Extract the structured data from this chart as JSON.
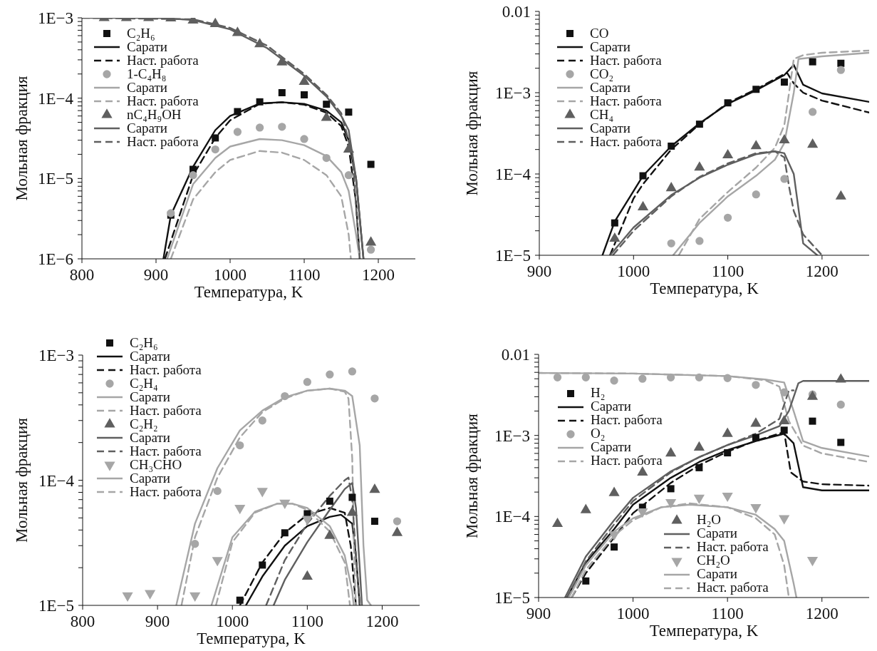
{
  "chart_data": [
    {
      "type": "line",
      "xlabel": "Температура, K",
      "ylabel": "Мольная фракция",
      "log": "y",
      "legend": "top left",
      "xlim": [
        800,
        1250
      ],
      "xticks": [
        800,
        900,
        1000,
        1100,
        1200
      ],
      "ylim": [
        1e-06,
        0.001
      ],
      "yticks": [
        {
          "value": 1e-06,
          "label": "1E−6"
        },
        {
          "value": 2e-06,
          "label": null
        },
        {
          "value": 3e-06,
          "label": null
        },
        {
          "value": 4e-06,
          "label": null
        },
        {
          "value": 5e-06,
          "label": null
        },
        {
          "value": 6e-06,
          "label": null
        },
        {
          "value": 7e-06,
          "label": null
        },
        {
          "value": 8e-06,
          "label": null
        },
        {
          "value": 9e-06,
          "label": null
        },
        {
          "value": 1e-05,
          "label": "1E−5"
        },
        {
          "value": 2e-05,
          "label": null
        },
        {
          "value": 3e-05,
          "label": null
        },
        {
          "value": 4e-05,
          "label": null
        },
        {
          "value": 5e-05,
          "label": null
        },
        {
          "value": 6e-05,
          "label": null
        },
        {
          "value": 7e-05,
          "label": null
        },
        {
          "value": 8e-05,
          "label": null
        },
        {
          "value": 9e-05,
          "label": null
        },
        {
          "value": 0.0001,
          "label": "1E−4"
        },
        {
          "value": 0.0002,
          "label": null
        },
        {
          "value": 0.0003,
          "label": null
        },
        {
          "value": 0.0004,
          "label": null
        },
        {
          "value": 0.0005,
          "label": null
        },
        {
          "value": 0.0006,
          "label": null
        },
        {
          "value": 0.0007,
          "label": null
        },
        {
          "value": 0.0008,
          "label": null
        },
        {
          "value": 0.0009,
          "label": null
        },
        {
          "value": 0.001,
          "label": "1E−3"
        }
      ],
      "series": [
        {
          "type": "scatter",
          "name": "C₂H₆",
          "color": "#111111",
          "marker": "square",
          "x": [
            920,
            950,
            980,
            1010,
            1040,
            1070,
            1100,
            1130,
            1160,
            1190
          ],
          "values": [
            3.5e-06,
            1.3e-05,
            3.2e-05,
            6.8e-05,
            9e-05,
            0.000117,
            0.00011,
            8.4e-05,
            6.7e-05,
            1.5e-05
          ]
        },
        {
          "type": "line",
          "name": "Сарати",
          "color": "#111111",
          "line_style": "solid",
          "x": [
            910,
            920,
            950,
            980,
            1000,
            1040,
            1070,
            1100,
            1130,
            1150,
            1160,
            1170,
            1180
          ],
          "values": [
            1e-06,
            3.5e-06,
            1.4e-05,
            4e-05,
            6e-05,
            8.6e-05,
            8.9e-05,
            8.5e-05,
            7e-05,
            5e-05,
            3e-05,
            1e-05,
            1e-06
          ]
        },
        {
          "type": "line",
          "name": "Наст. работа",
          "color": "#111111",
          "line_style": "dashed",
          "x": [
            912,
            950,
            980,
            1000,
            1040,
            1070,
            1100,
            1130,
            1150,
            1160,
            1170,
            1175
          ],
          "values": [
            1e-06,
            1.1e-05,
            3.2e-05,
            5.3e-05,
            8.5e-05,
            8.9e-05,
            8.3e-05,
            6.6e-05,
            4.5e-05,
            2.5e-05,
            5e-06,
            1e-06
          ]
        },
        {
          "type": "scatter",
          "name": "1-C₄H₈",
          "color": "#a6a6a6",
          "marker": "circle",
          "x": [
            920,
            950,
            980,
            1010,
            1040,
            1070,
            1100,
            1130,
            1160,
            1190
          ],
          "values": [
            3.7e-06,
            1.1e-05,
            2.3e-05,
            3.8e-05,
            4.3e-05,
            4.4e-05,
            3.1e-05,
            1.8e-05,
            1.1e-05,
            1.3e-06
          ]
        },
        {
          "type": "line",
          "name": "Сарати",
          "color": "#a6a6a6",
          "line_style": "solid",
          "x": [
            915,
            950,
            980,
            1000,
            1040,
            1070,
            1100,
            1130,
            1150,
            1160,
            1170,
            1175
          ],
          "values": [
            1e-06,
            8.5e-06,
            1.8e-05,
            2.5e-05,
            3.1e-05,
            3e-05,
            2.6e-05,
            1.9e-05,
            1.2e-05,
            7e-06,
            2e-06,
            1e-06
          ]
        },
        {
          "type": "line",
          "name": "Наст. работа",
          "color": "#a6a6a6",
          "line_style": "dashed",
          "x": [
            920,
            950,
            980,
            1000,
            1040,
            1070,
            1100,
            1130,
            1150,
            1160,
            1163
          ],
          "values": [
            1e-06,
            5.5e-06,
            1.2e-05,
            1.7e-05,
            2.2e-05,
            2.1e-05,
            1.7e-05,
            1.1e-05,
            6e-06,
            2e-06,
            1e-06
          ]
        },
        {
          "type": "scatter",
          "name": "nC₄H₉OH",
          "color": "#5f5f5f",
          "marker": "triangle",
          "x": [
            830,
            860,
            890,
            920,
            950,
            980,
            1010,
            1040,
            1070,
            1100,
            1130,
            1160,
            1190
          ],
          "values": [
            0.001,
            0.001,
            0.001,
            0.00099,
            0.00093,
            0.00084,
            0.00065,
            0.00047,
            0.00028,
            0.00016,
            5.7e-05,
            2.3e-05,
            1.6e-06
          ]
        },
        {
          "type": "line",
          "name": "Сарати",
          "color": "#5f5f5f",
          "line_style": "solid",
          "x": [
            800,
            900,
            950,
            1000,
            1050,
            1100,
            1130,
            1150,
            1160,
            1170,
            1180
          ],
          "values": [
            0.001,
            0.001,
            0.00094,
            0.00072,
            0.00042,
            0.00019,
            0.000105,
            6e-05,
            4e-05,
            1e-05,
            1e-06
          ]
        },
        {
          "type": "line",
          "name": "Наст. работа",
          "color": "#5f5f5f",
          "line_style": "dashed",
          "x": [
            800,
            950,
            1000,
            1050,
            1100,
            1130,
            1150,
            1165,
            1175
          ],
          "values": [
            0.001,
            0.00096,
            0.00075,
            0.00045,
            0.0002,
            0.00011,
            6.5e-05,
            2e-05,
            1e-06
          ]
        }
      ]
    },
    {
      "type": "line",
      "xlabel": "Температура, K",
      "ylabel": "Мольная фракция",
      "log": "y",
      "legend": "top left",
      "xlim": [
        900,
        1250
      ],
      "xticks": [
        900,
        1000,
        1100,
        1200
      ],
      "ylim": [
        1e-05,
        0.01
      ],
      "yticks": [
        {
          "value": 1e-05,
          "label": "1E−5"
        },
        {
          "value": 2e-05,
          "label": null
        },
        {
          "value": 3e-05,
          "label": null
        },
        {
          "value": 4e-05,
          "label": null
        },
        {
          "value": 5e-05,
          "label": null
        },
        {
          "value": 6e-05,
          "label": null
        },
        {
          "value": 7e-05,
          "label": null
        },
        {
          "value": 8e-05,
          "label": null
        },
        {
          "value": 9e-05,
          "label": null
        },
        {
          "value": 0.0001,
          "label": "1E−4"
        },
        {
          "value": 0.0002,
          "label": null
        },
        {
          "value": 0.0003,
          "label": null
        },
        {
          "value": 0.0004,
          "label": null
        },
        {
          "value": 0.0005,
          "label": null
        },
        {
          "value": 0.0006,
          "label": null
        },
        {
          "value": 0.0007,
          "label": null
        },
        {
          "value": 0.0008,
          "label": null
        },
        {
          "value": 0.0009,
          "label": null
        },
        {
          "value": 0.001,
          "label": "1E−3"
        },
        {
          "value": 0.002,
          "label": null
        },
        {
          "value": 0.003,
          "label": null
        },
        {
          "value": 0.004,
          "label": null
        },
        {
          "value": 0.005,
          "label": null
        },
        {
          "value": 0.006,
          "label": null
        },
        {
          "value": 0.007,
          "label": null
        },
        {
          "value": 0.008,
          "label": null
        },
        {
          "value": 0.009,
          "label": null
        },
        {
          "value": 0.01,
          "label": "0.01"
        }
      ],
      "series": [
        {
          "type": "scatter",
          "name": "CO",
          "color": "#111111",
          "marker": "square",
          "x": [
            980,
            1010,
            1040,
            1070,
            1100,
            1130,
            1160,
            1190,
            1220
          ],
          "values": [
            2.5e-05,
            9.5e-05,
            0.00022,
            0.00041,
            0.00075,
            0.0011,
            0.00135,
            0.0024,
            0.0023
          ]
        },
        {
          "type": "line",
          "name": "Сарати",
          "color": "#111111",
          "line_style": "solid",
          "x": [
            967,
            980,
            1010,
            1040,
            1070,
            1100,
            1130,
            1160,
            1170,
            1180,
            1200,
            1250
          ],
          "values": [
            1e-05,
            2.6e-05,
            9.5e-05,
            0.00022,
            0.00042,
            0.00073,
            0.00107,
            0.00165,
            0.0022,
            0.00125,
            0.00098,
            0.00077
          ]
        },
        {
          "type": "line",
          "name": "Наст. работа",
          "color": "#111111",
          "line_style": "dashed",
          "x": [
            975,
            1000,
            1010,
            1040,
            1070,
            1100,
            1130,
            1160,
            1163,
            1170,
            1180,
            1200,
            1250
          ],
          "values": [
            1e-05,
            5e-05,
            7.5e-05,
            0.0002,
            0.00041,
            0.00075,
            0.0011,
            0.0017,
            0.00175,
            0.0013,
            0.001,
            0.0008,
            0.00057
          ]
        },
        {
          "type": "scatter",
          "name": "CO₂",
          "color": "#a6a6a6",
          "marker": "circle",
          "x": [
            1040,
            1070,
            1100,
            1130,
            1160,
            1190,
            1220
          ],
          "values": [
            1.4e-05,
            1.5e-05,
            2.9e-05,
            5.6e-05,
            8.7e-05,
            0.00058,
            0.0019
          ]
        },
        {
          "type": "line",
          "name": "Сарати",
          "color": "#a6a6a6",
          "line_style": "solid",
          "x": [
            1042,
            1070,
            1100,
            1130,
            1150,
            1160,
            1170,
            1175,
            1200,
            1250
          ],
          "values": [
            1e-05,
            2.5e-05,
            5.3e-05,
            9.5e-05,
            0.00015,
            0.00024,
            0.001,
            0.0026,
            0.0028,
            0.0031
          ]
        },
        {
          "type": "line",
          "name": "Наст. работа",
          "color": "#a6a6a6",
          "line_style": "dashed",
          "x": [
            1048,
            1070,
            1100,
            1130,
            1150,
            1160,
            1165,
            1170,
            1180,
            1200,
            1250
          ],
          "values": [
            1e-05,
            2.8e-05,
            6e-05,
            0.00012,
            0.00021,
            0.0004,
            0.001,
            0.0026,
            0.0029,
            0.0031,
            0.0033
          ]
        },
        {
          "type": "scatter",
          "name": "CH₄",
          "color": "#5f5f5f",
          "marker": "triangle",
          "x": [
            980,
            1010,
            1040,
            1070,
            1100,
            1130,
            1160,
            1190,
            1220
          ],
          "values": [
            1.6e-05,
            3.9e-05,
            6.7e-05,
            0.00012,
            0.00017,
            0.00022,
            0.00026,
            0.00023,
            5.3e-05
          ]
        },
        {
          "type": "line",
          "name": "Сарати",
          "color": "#5f5f5f",
          "line_style": "solid",
          "x": [
            975,
            1000,
            1040,
            1070,
            1100,
            1130,
            1150,
            1160,
            1170,
            1180,
            1195
          ],
          "values": [
            1e-05,
            2.2e-05,
            5.5e-05,
            9e-05,
            0.00013,
            0.000175,
            0.00019,
            0.00018,
            0.0001,
            1.4e-05,
            1e-05
          ]
        },
        {
          "type": "line",
          "name": "Наст. работа",
          "color": "#5f5f5f",
          "line_style": "dashed",
          "x": [
            978,
            1000,
            1040,
            1070,
            1100,
            1130,
            1150,
            1160,
            1165,
            1170,
            1180,
            1200
          ],
          "values": [
            1e-05,
            2e-05,
            5.3e-05,
            9.2e-05,
            0.000135,
            0.00018,
            0.00019,
            0.00016,
            7e-05,
            3.5e-05,
            1.8e-05,
            1e-05
          ]
        }
      ]
    },
    {
      "type": "line",
      "xlabel": "Температура, K",
      "ylabel": "Мольная фракция",
      "log": "y",
      "legend": "top left",
      "xlim": [
        800,
        1250
      ],
      "xticks": [
        800,
        900,
        1000,
        1100,
        1200
      ],
      "ylim": [
        1e-05,
        0.001
      ],
      "yticks": [
        {
          "value": 1e-05,
          "label": "1E−5"
        },
        {
          "value": 2e-05,
          "label": null
        },
        {
          "value": 3e-05,
          "label": null
        },
        {
          "value": 4e-05,
          "label": null
        },
        {
          "value": 5e-05,
          "label": null
        },
        {
          "value": 6e-05,
          "label": null
        },
        {
          "value": 7e-05,
          "label": null
        },
        {
          "value": 8e-05,
          "label": null
        },
        {
          "value": 9e-05,
          "label": null
        },
        {
          "value": 0.0001,
          "label": "1E−4"
        },
        {
          "value": 0.0002,
          "label": null
        },
        {
          "value": 0.0003,
          "label": null
        },
        {
          "value": 0.0004,
          "label": null
        },
        {
          "value": 0.0005,
          "label": null
        },
        {
          "value": 0.0006,
          "label": null
        },
        {
          "value": 0.0007,
          "label": null
        },
        {
          "value": 0.0008,
          "label": null
        },
        {
          "value": 0.0009,
          "label": null
        },
        {
          "value": 0.001,
          "label": "1E−3"
        }
      ],
      "series": [
        {
          "type": "scatter",
          "name": "C₂H₆",
          "color": "#111111",
          "marker": "square",
          "x": [
            1010,
            1040,
            1070,
            1100,
            1130,
            1160,
            1190
          ],
          "values": [
            1.1e-05,
            2.1e-05,
            3.8e-05,
            5.4e-05,
            6.8e-05,
            7.3e-05,
            4.7e-05
          ]
        },
        {
          "type": "line",
          "name": "Сарати",
          "color": "#111111",
          "line_style": "solid",
          "x": [
            1018,
            1040,
            1070,
            1100,
            1130,
            1145,
            1160,
            1165,
            1170
          ],
          "values": [
            1e-05,
            1.7e-05,
            3e-05,
            4.3e-05,
            5.1e-05,
            5.3e-05,
            4.5e-05,
            2.5e-05,
            1e-05
          ]
        },
        {
          "type": "line",
          "name": "Наст. работа",
          "color": "#111111",
          "line_style": "dashed",
          "x": [
            1010,
            1040,
            1070,
            1100,
            1130,
            1150,
            1158,
            1165
          ],
          "values": [
            1e-05,
            2.2e-05,
            3.8e-05,
            5.3e-05,
            6e-05,
            5.5e-05,
            3e-05,
            1e-05
          ]
        },
        {
          "type": "scatter",
          "name": "C₂H₄",
          "color": "#a6a6a6",
          "marker": "circle",
          "x": [
            950,
            980,
            1010,
            1040,
            1070,
            1100,
            1130,
            1160,
            1190,
            1220
          ],
          "values": [
            3.1e-05,
            8.2e-05,
            0.00019,
            0.0003,
            0.00047,
            0.00061,
            0.0007,
            0.00074,
            0.00045,
            4.7e-05
          ]
        },
        {
          "type": "line",
          "name": "Сарати",
          "color": "#a6a6a6",
          "line_style": "solid",
          "x": [
            925,
            950,
            980,
            1010,
            1040,
            1070,
            1100,
            1130,
            1150,
            1160,
            1170,
            1175,
            1180,
            1185
          ],
          "values": [
            1e-05,
            4.5e-05,
            0.000125,
            0.00025,
            0.00036,
            0.00046,
            0.00052,
            0.00054,
            0.00052,
            0.00047,
            0.00019,
            3e-05,
            1.1e-05,
            1e-05
          ]
        },
        {
          "type": "line",
          "name": "Наст. работа",
          "color": "#a6a6a6",
          "line_style": "dashed",
          "x": [
            932,
            950,
            980,
            1010,
            1040,
            1070,
            1100,
            1130,
            1150,
            1155,
            1160,
            1163,
            1165
          ],
          "values": [
            1e-05,
            3.5e-05,
            0.000105,
            0.00022,
            0.00035,
            0.00045,
            0.00052,
            0.00054,
            0.00051,
            0.00045,
            0.00015,
            2e-05,
            1e-05
          ]
        },
        {
          "type": "scatter",
          "name": "C₂H₂",
          "color": "#5f5f5f",
          "marker": "triangle",
          "x": [
            1100,
            1130,
            1160,
            1190,
            1220
          ],
          "values": [
            1.7e-05,
            3.6e-05,
            5.5e-05,
            8.4e-05,
            3.8e-05
          ]
        },
        {
          "type": "line",
          "name": "Сарати",
          "color": "#5f5f5f",
          "line_style": "solid",
          "x": [
            1055,
            1070,
            1100,
            1130,
            1150,
            1160,
            1165,
            1170,
            1173
          ],
          "values": [
            1e-05,
            1.6e-05,
            3.2e-05,
            5.8e-05,
            8.5e-05,
            9.5e-05,
            6e-05,
            2e-05,
            1e-05
          ]
        },
        {
          "type": "line",
          "name": "Наст. работа",
          "color": "#5f5f5f",
          "line_style": "dashed",
          "x": [
            1045,
            1070,
            1100,
            1130,
            1150,
            1155,
            1160,
            1165,
            1170
          ],
          "values": [
            1e-05,
            2.3e-05,
            4.5e-05,
            7.5e-05,
            0.0001,
            0.000105,
            7e-05,
            2.5e-05,
            1e-05
          ]
        },
        {
          "type": "scatter",
          "name": "CH₃CHO",
          "color": "#a6a6a6",
          "marker": "triangle-down",
          "x": [
            860,
            890,
            950,
            980,
            1010,
            1040,
            1070,
            1100
          ],
          "values": [
            1.2e-05,
            1.25e-05,
            1.2e-05,
            2.3e-05,
            6e-05,
            8.2e-05,
            6.6e-05,
            4.9e-05
          ]
        },
        {
          "type": "line",
          "name": "Сарати",
          "color": "#a6a6a6",
          "line_style": "solid",
          "x": [
            972,
            1000,
            1030,
            1060,
            1080,
            1100,
            1130,
            1150,
            1160,
            1162
          ],
          "values": [
            1e-05,
            3.5e-05,
            5.6e-05,
            6.5e-05,
            6.5e-05,
            6e-05,
            4.3e-05,
            2.5e-05,
            1.3e-05,
            1e-05
          ]
        },
        {
          "type": "line",
          "name": "Наст. работа",
          "color": "#a6a6a6",
          "line_style": "dashed",
          "x": [
            978,
            1000,
            1030,
            1060,
            1080,
            1100,
            1130,
            1150,
            1157
          ],
          "values": [
            1e-05,
            3.2e-05,
            5.5e-05,
            6.5e-05,
            6.5e-05,
            5.8e-05,
            3.9e-05,
            2.2e-05,
            1e-05
          ]
        }
      ]
    },
    {
      "type": "line",
      "xlabel": "Температура, K",
      "ylabel": "Мольная фракция",
      "log": "y",
      "legend": "left",
      "xlim": [
        900,
        1250
      ],
      "xticks": [
        900,
        1000,
        1100,
        1200
      ],
      "ylim": [
        1e-05,
        0.01
      ],
      "yticks": [
        {
          "value": 1e-05,
          "label": "1E−5"
        },
        {
          "value": 2e-05,
          "label": null
        },
        {
          "value": 3e-05,
          "label": null
        },
        {
          "value": 4e-05,
          "label": null
        },
        {
          "value": 5e-05,
          "label": null
        },
        {
          "value": 6e-05,
          "label": null
        },
        {
          "value": 7e-05,
          "label": null
        },
        {
          "value": 8e-05,
          "label": null
        },
        {
          "value": 9e-05,
          "label": null
        },
        {
          "value": 0.0001,
          "label": "1E−4"
        },
        {
          "value": 0.0002,
          "label": null
        },
        {
          "value": 0.0003,
          "label": null
        },
        {
          "value": 0.0004,
          "label": null
        },
        {
          "value": 0.0005,
          "label": null
        },
        {
          "value": 0.0006,
          "label": null
        },
        {
          "value": 0.0007,
          "label": null
        },
        {
          "value": 0.0008,
          "label": null
        },
        {
          "value": 0.0009,
          "label": null
        },
        {
          "value": 0.001,
          "label": "1E−3"
        },
        {
          "value": 0.002,
          "label": null
        },
        {
          "value": 0.003,
          "label": null
        },
        {
          "value": 0.004,
          "label": null
        },
        {
          "value": 0.005,
          "label": null
        },
        {
          "value": 0.006,
          "label": null
        },
        {
          "value": 0.007,
          "label": null
        },
        {
          "value": 0.008,
          "label": null
        },
        {
          "value": 0.009,
          "label": null
        },
        {
          "value": 0.01,
          "label": "0.01"
        }
      ],
      "series": [
        {
          "type": "scatter",
          "name": "H₂",
          "color": "#111111",
          "marker": "square",
          "x": [
            950,
            980,
            1010,
            1040,
            1070,
            1100,
            1130,
            1160,
            1190,
            1220
          ],
          "values": [
            1.6e-05,
            4.2e-05,
            0.00013,
            0.00022,
            0.0004,
            0.00061,
            0.00094,
            0.00116,
            0.0015,
            0.00082
          ]
        },
        {
          "type": "line",
          "name": "Сарати",
          "color": "#111111",
          "line_style": "solid",
          "x": [
            930,
            950,
            980,
            1000,
            1040,
            1070,
            1100,
            1130,
            1160,
            1170,
            1180,
            1200,
            1250
          ],
          "values": [
            1e-05,
            2.7e-05,
            7e-05,
            0.00014,
            0.0003,
            0.00047,
            0.00066,
            0.00085,
            0.00105,
            0.0008,
            0.00023,
            0.00021,
            0.00021
          ]
        },
        {
          "type": "line",
          "name": "Наст. работа",
          "color": "#111111",
          "line_style": "dashed",
          "x": [
            935,
            950,
            980,
            1000,
            1040,
            1070,
            1100,
            1130,
            1160,
            1167,
            1180,
            1200,
            1250
          ],
          "values": [
            1e-05,
            2e-05,
            5.5e-05,
            0.00011,
            0.00026,
            0.00043,
            0.00063,
            0.00086,
            0.0011,
            0.00035,
            0.00027,
            0.00025,
            0.00024
          ]
        },
        {
          "type": "scatter",
          "name": "O₂",
          "color": "#a6a6a6",
          "marker": "circle",
          "x": [
            920,
            950,
            980,
            1010,
            1040,
            1070,
            1100,
            1130,
            1160,
            1190,
            1220
          ],
          "values": [
            0.0052,
            0.0052,
            0.00475,
            0.005,
            0.0052,
            0.0052,
            0.0051,
            0.0042,
            0.0034,
            0.0032,
            0.0024
          ]
        },
        {
          "type": "line",
          "name": "Сарати",
          "color": "#a6a6a6",
          "line_style": "solid",
          "x": [
            900,
            1000,
            1100,
            1140,
            1160,
            1170,
            1180,
            1200,
            1250
          ],
          "values": [
            0.0059,
            0.0058,
            0.0054,
            0.0049,
            0.0045,
            0.002,
            0.00085,
            0.0007,
            0.00055
          ]
        },
        {
          "type": "line",
          "name": "Наст. работа",
          "color": "#a6a6a6",
          "line_style": "dashed",
          "x": [
            900,
            1000,
            1100,
            1140,
            1155,
            1165,
            1180,
            1200,
            1250
          ],
          "values": [
            0.0059,
            0.0058,
            0.0054,
            0.0048,
            0.004,
            0.0015,
            0.00075,
            0.0006,
            0.00047
          ]
        },
        {
          "type": "scatter",
          "name": "H₂O",
          "color": "#5f5f5f",
          "marker": "triangle",
          "x": [
            920,
            950,
            980,
            1010,
            1040,
            1070,
            1100,
            1130,
            1160,
            1190,
            1220
          ],
          "values": [
            8.1e-05,
            0.00012,
            0.000195,
            0.00035,
            0.0006,
            0.00071,
            0.00105,
            0.0014,
            0.0015,
            0.003,
            0.0049
          ]
        },
        {
          "type": "line",
          "name": "Сарати",
          "color": "#5f5f5f",
          "line_style": "solid",
          "x": [
            928,
            950,
            980,
            1000,
            1040,
            1070,
            1100,
            1130,
            1155,
            1165,
            1175,
            1180,
            1250
          ],
          "values": [
            1e-05,
            3.2e-05,
            9e-05,
            0.00017,
            0.00036,
            0.00054,
            0.00076,
            0.001,
            0.0013,
            0.002,
            0.0044,
            0.0047,
            0.0047
          ]
        },
        {
          "type": "line",
          "name": "Наст. работа",
          "color": "#5f5f5f",
          "line_style": "dashed",
          "x": [
            930,
            950,
            980,
            1000,
            1040,
            1070,
            1100,
            1130,
            1155,
            1165,
            1170
          ],
          "values": [
            1e-05,
            2.8e-05,
            8e-05,
            0.000155,
            0.00035,
            0.00054,
            0.00076,
            0.00105,
            0.0016,
            0.0036,
            0.0036
          ]
        },
        {
          "type": "scatter",
          "name": "CH₂O",
          "color": "#a6a6a6",
          "marker": "triangle-down",
          "x": [
            980,
            1010,
            1040,
            1070,
            1100,
            1130,
            1160,
            1190
          ],
          "values": [
            6e-05,
            0.000115,
            0.00015,
            0.00017,
            0.00018,
            0.00013,
            9.5e-05,
            2.9e-05
          ]
        },
        {
          "type": "line",
          "name": "Сарати",
          "color": "#a6a6a6",
          "line_style": "solid",
          "x": [
            932,
            950,
            980,
            1000,
            1030,
            1060,
            1100,
            1130,
            1150,
            1160,
            1170,
            1173
          ],
          "values": [
            1e-05,
            2.5e-05,
            6.5e-05,
            9.5e-05,
            0.00013,
            0.00014,
            0.00013,
            0.000105,
            7e-05,
            5e-05,
            1.5e-05,
            1e-05
          ]
        },
        {
          "type": "line",
          "name": "Наст. работа",
          "color": "#a6a6a6",
          "line_style": "dashed",
          "x": [
            935,
            950,
            980,
            1000,
            1030,
            1060,
            1100,
            1130,
            1150,
            1160,
            1165
          ],
          "values": [
            1e-05,
            2.2e-05,
            5.8e-05,
            9e-05,
            0.00013,
            0.000145,
            0.00013,
            9.5e-05,
            6e-05,
            2.5e-05,
            1e-05
          ]
        }
      ]
    }
  ]
}
